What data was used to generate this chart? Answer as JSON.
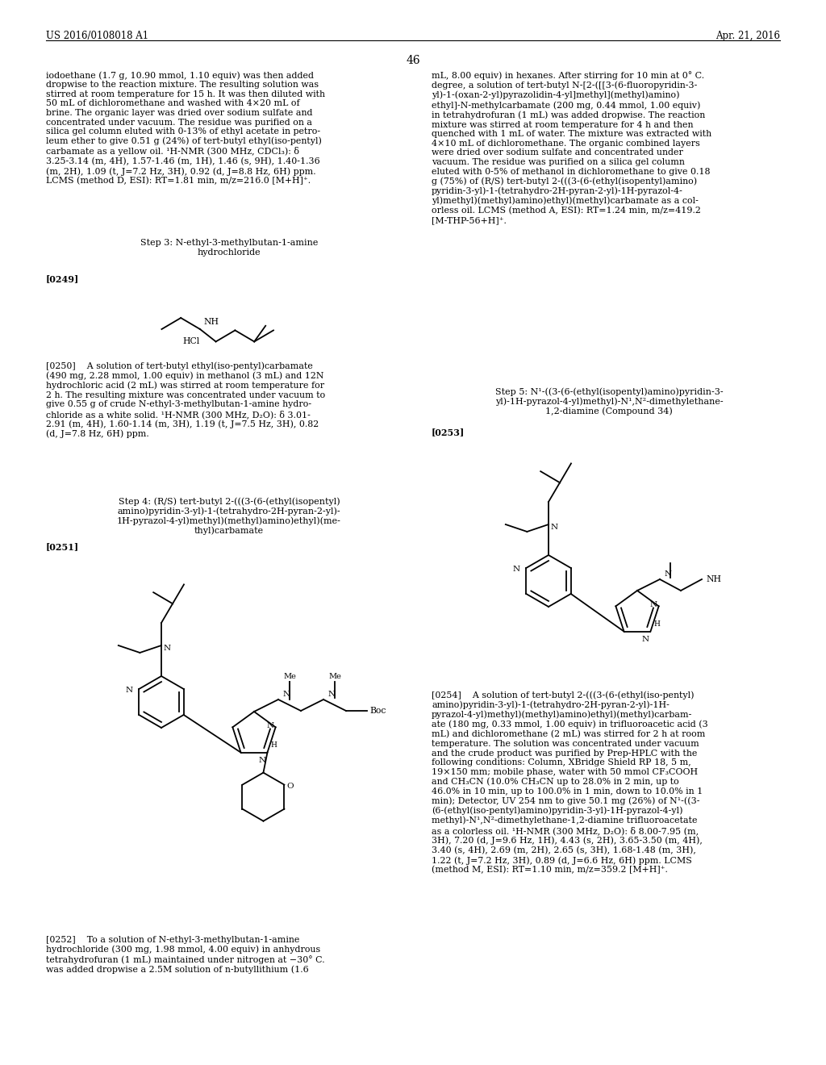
{
  "background_color": "#ffffff",
  "header_left": "US 2016/0108018 A1",
  "header_right": "Apr. 21, 2016",
  "page_number": "46"
}
